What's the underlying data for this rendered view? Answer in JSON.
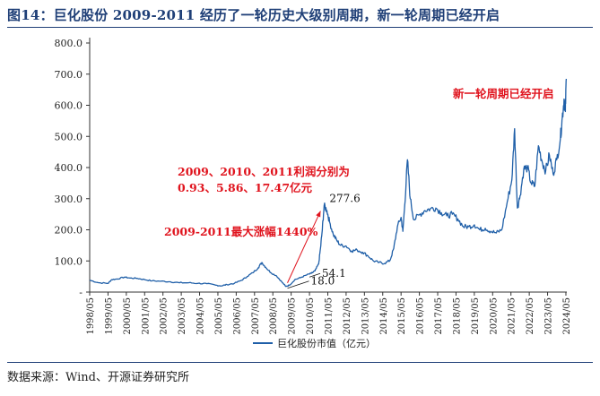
{
  "title": "图14：巨化股份 2009-2011 经历了一轮历史大级别周期，新一轮周期已经开启",
  "source": "数据来源：Wind、开源证券研究所",
  "chart_data": {
    "type": "line",
    "title": "图14：巨化股份 2009-2011 经历了一轮历史大级别周期，新一轮周期已经开启",
    "xlabel": "",
    "ylabel": "",
    "ylim": [
      0,
      800
    ],
    "yticks": [
      "-",
      "100.0",
      "200.0",
      "300.0",
      "400.0",
      "500.0",
      "600.0",
      "700.0",
      "800.0"
    ],
    "categories": [
      "1998/05",
      "1999/05",
      "2000/05",
      "2001/05",
      "2002/05",
      "2003/05",
      "2004/05",
      "2005/05",
      "2006/05",
      "2007/05",
      "2008/05",
      "2009/05",
      "2010/05",
      "2011/05",
      "2012/05",
      "2013/05",
      "2014/05",
      "2015/05",
      "2016/05",
      "2017/05",
      "2018/05",
      "2019/05",
      "2020/05",
      "2021/05",
      "2022/05",
      "2023/05",
      "2024/05"
    ],
    "series": [
      {
        "name": "巨化股份市值（亿元）",
        "color": "#1f5fa8",
        "x": [
          1998.4,
          1998.9,
          1999.4,
          1999.6,
          1999.9,
          2000.3,
          2000.6,
          2001.0,
          2001.4,
          2001.8,
          2002.3,
          2002.8,
          2003.3,
          2003.8,
          2004.3,
          2004.8,
          2005.3,
          2005.6,
          2005.9,
          2006.3,
          2006.7,
          2007.0,
          2007.3,
          2007.6,
          2007.8,
          2008.0,
          2008.3,
          2008.6,
          2008.9,
          2009.1,
          2009.3,
          2009.6,
          2009.9,
          2010.2,
          2010.5,
          2010.7,
          2010.9,
          2011.0,
          2011.1,
          2011.2,
          2011.35,
          2011.5,
          2011.7,
          2011.9,
          2012.1,
          2012.4,
          2012.7,
          2013.0,
          2013.3,
          2013.6,
          2013.9,
          2014.2,
          2014.5,
          2014.8,
          2015.0,
          2015.2,
          2015.4,
          2015.5,
          2015.6,
          2015.75,
          2015.9,
          2016.1,
          2016.4,
          2016.7,
          2017.0,
          2017.3,
          2017.6,
          2017.9,
          2018.2,
          2018.5,
          2018.8,
          2019.1,
          2019.4,
          2019.7,
          2020.0,
          2020.3,
          2020.6,
          2020.9,
          2021.2,
          2021.45,
          2021.6,
          2021.75,
          2021.9,
          2022.1,
          2022.3,
          2022.5,
          2022.7,
          2022.9,
          2023.1,
          2023.3,
          2023.5,
          2023.7,
          2023.9,
          2024.1,
          2024.2,
          2024.3,
          2024.37,
          2024.42
        ],
        "values": [
          38,
          30,
          28,
          40,
          42,
          48,
          45,
          44,
          40,
          36,
          35,
          33,
          30,
          30,
          28,
          27,
          22,
          20,
          24,
          28,
          38,
          50,
          62,
          78,
          95,
          80,
          62,
          52,
          32,
          18,
          22,
          40,
          46,
          54,
          60,
          68,
          90,
          140,
          200,
          277.6,
          262,
          225,
          185,
          165,
          150,
          148,
          132,
          135,
          128,
          116,
          100,
          95,
          92,
          102,
          140,
          210,
          240,
          195,
          280,
          425,
          300,
          232,
          248,
          262,
          268,
          270,
          255,
          245,
          250,
          235,
          210,
          210,
          216,
          200,
          205,
          195,
          190,
          200,
          290,
          360,
          525,
          270,
          310,
          395,
          400,
          350,
          340,
          470,
          420,
          390,
          440,
          380,
          425,
          495,
          560,
          620,
          580,
          685
        ]
      }
    ],
    "annotations": [
      {
        "text": "277.6",
        "x": 2011.2,
        "y": 277.6
      },
      {
        "text": "54.1",
        "x": 2010.2,
        "y": 54.1
      },
      {
        "text": "18.0",
        "x": 2009.1,
        "y": 18.0
      },
      {
        "text": "2009、2010、2011利润分别为",
        "color": "#e0141e"
      },
      {
        "text": "0.93、5.86、17.47亿元",
        "color": "#e0141e"
      },
      {
        "text": "2009-2011最大涨幅1440%",
        "color": "#e0141e"
      },
      {
        "text": "新一轮周期已经开启",
        "color": "#e0141e"
      }
    ],
    "legend": "bottom-center",
    "grid": false
  }
}
